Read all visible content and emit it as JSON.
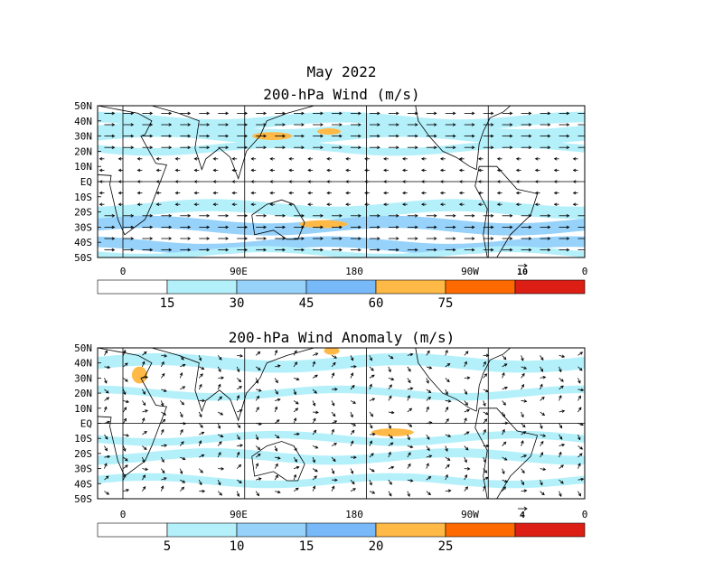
{
  "figure": {
    "title": "May 2022"
  },
  "chart_data": [
    {
      "type": "map-vector-field",
      "title": "200-hPa Wind (m/s)",
      "x_ticks": [
        "0",
        "90E",
        "180",
        "90W",
        "0"
      ],
      "y_ticks": [
        "50N",
        "40N",
        "30N",
        "20N",
        "10N",
        "EQ",
        "10S",
        "20S",
        "30S",
        "40S",
        "50S"
      ],
      "reference_vector_label": "10",
      "colorbar": {
        "ticks": [
          "15",
          "30",
          "45",
          "60",
          "75"
        ],
        "colors": [
          "#ffffff",
          "#b4f0fa",
          "#96d2fa",
          "#78b9fa",
          "#ffb946",
          "#ff6a00",
          "#dc1e14"
        ]
      }
    },
    {
      "type": "map-vector-field",
      "title": "200-hPa Wind Anomaly (m/s)",
      "x_ticks": [
        "0",
        "90E",
        "180",
        "90W",
        "0"
      ],
      "y_ticks": [
        "50N",
        "40N",
        "30N",
        "20N",
        "10N",
        "EQ",
        "10S",
        "20S",
        "30S",
        "40S",
        "50S"
      ],
      "reference_vector_label": "4",
      "colorbar": {
        "ticks": [
          "5",
          "10",
          "15",
          "20",
          "25"
        ],
        "colors": [
          "#ffffff",
          "#b4f0fa",
          "#96d2fa",
          "#78b9fa",
          "#ffb946",
          "#ff6a00",
          "#dc1e14"
        ]
      }
    }
  ]
}
